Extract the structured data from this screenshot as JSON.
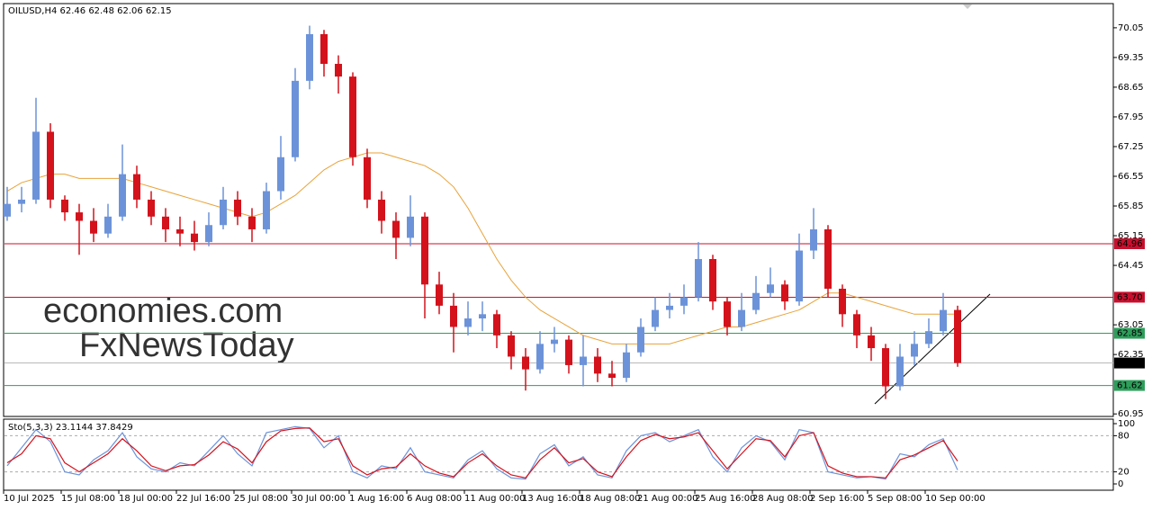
{
  "chart_data": {
    "type": "candlestick",
    "symbol_text": "OILUSD,H4",
    "quote_text": "62.46 62.48 62.06 62.15",
    "watermarks": [
      "economies.com",
      "FxNewsToday"
    ],
    "up_color": "#6c93d9",
    "down_color": "#d3121c",
    "categories": [
      "10 Jul 2025",
      null,
      null,
      null,
      "15 Jul 08:00",
      null,
      null,
      null,
      "18 Jul 00:00",
      null,
      null,
      null,
      "22 Jul 16:00",
      null,
      null,
      null,
      "25 Jul 08:00",
      null,
      null,
      null,
      "30 Jul 00:00",
      null,
      null,
      null,
      "1 Aug 16:00",
      null,
      null,
      null,
      "6 Aug 08:00",
      null,
      null,
      null,
      "11 Aug 00:00",
      null,
      null,
      null,
      "13 Aug 16:00",
      null,
      null,
      null,
      "18 Aug 08:00",
      null,
      null,
      null,
      "21 Aug 00:00",
      null,
      null,
      null,
      "25 Aug 16:00",
      null,
      null,
      null,
      "28 Aug 08:00",
      null,
      null,
      null,
      "2 Sep 16:00",
      null,
      null,
      null,
      "5 Sep 08:00",
      null,
      null,
      null,
      "10 Sep 00:00",
      null,
      null
    ],
    "open": [
      65.6,
      65.9,
      66.0,
      67.6,
      66.0,
      65.7,
      65.5,
      65.2,
      65.6,
      66.6,
      66.0,
      65.6,
      65.3,
      65.2,
      65.0,
      65.4,
      66.0,
      65.6,
      65.3,
      66.2,
      67.0,
      68.8,
      69.9,
      69.2,
      68.9,
      67.0,
      66.0,
      65.5,
      65.1,
      65.6,
      64.0,
      63.5,
      63.0,
      63.2,
      63.3,
      62.8,
      62.3,
      62.0,
      62.6,
      62.7,
      62.1,
      62.3,
      61.9,
      61.8,
      62.4,
      63.0,
      63.4,
      63.5,
      63.7,
      64.6,
      63.6,
      63.0,
      63.4,
      63.8,
      64.0,
      63.6,
      64.8,
      65.3,
      63.9,
      63.3,
      62.8,
      62.5,
      61.6,
      62.3,
      62.6,
      62.9,
      63.4
    ],
    "high": [
      66.3,
      66.3,
      68.4,
      67.8,
      66.1,
      65.9,
      65.8,
      65.9,
      67.3,
      66.8,
      66.2,
      65.8,
      65.6,
      65.5,
      65.7,
      66.3,
      66.2,
      65.8,
      66.4,
      67.5,
      69.1,
      70.1,
      70.0,
      69.4,
      69.0,
      67.2,
      66.2,
      65.7,
      66.1,
      65.7,
      64.3,
      63.8,
      63.6,
      63.6,
      63.4,
      62.9,
      62.5,
      62.9,
      63.0,
      62.8,
      62.8,
      62.5,
      62.2,
      62.6,
      63.2,
      63.7,
      63.8,
      64.0,
      65.0,
      64.7,
      63.7,
      63.8,
      64.2,
      64.4,
      64.1,
      65.2,
      65.8,
      65.4,
      64.0,
      63.4,
      63.0,
      62.6,
      62.6,
      62.9,
      63.2,
      63.8,
      63.5
    ],
    "low": [
      65.5,
      65.7,
      65.9,
      65.8,
      65.5,
      64.7,
      65.0,
      65.1,
      65.5,
      65.8,
      65.4,
      65.0,
      64.9,
      64.8,
      64.9,
      65.3,
      65.4,
      65.0,
      65.2,
      66.0,
      66.9,
      68.6,
      68.9,
      68.5,
      66.8,
      65.8,
      65.2,
      64.6,
      64.9,
      63.2,
      63.3,
      62.4,
      62.8,
      62.9,
      62.5,
      62.0,
      61.5,
      61.9,
      62.4,
      61.9,
      61.6,
      61.7,
      61.6,
      61.7,
      62.3,
      62.9,
      63.2,
      63.3,
      63.6,
      63.4,
      62.8,
      62.9,
      63.3,
      63.7,
      63.4,
      63.5,
      64.6,
      63.7,
      63.0,
      62.5,
      62.2,
      61.3,
      61.5,
      62.1,
      62.5,
      62.8,
      62.06
    ],
    "close": [
      65.9,
      66.0,
      67.6,
      66.0,
      65.7,
      65.5,
      65.2,
      65.6,
      66.6,
      66.0,
      65.6,
      65.3,
      65.2,
      65.0,
      65.4,
      66.0,
      65.6,
      65.3,
      66.2,
      67.0,
      68.8,
      69.9,
      69.2,
      68.9,
      67.0,
      66.0,
      65.5,
      65.1,
      65.6,
      64.0,
      63.5,
      63.0,
      63.2,
      63.3,
      62.8,
      62.3,
      62.0,
      62.6,
      62.7,
      62.1,
      62.3,
      61.9,
      61.8,
      62.4,
      63.0,
      63.4,
      63.5,
      63.7,
      64.6,
      63.6,
      63.0,
      63.4,
      63.8,
      64.0,
      63.6,
      64.8,
      65.3,
      63.9,
      63.3,
      62.8,
      62.5,
      61.6,
      62.3,
      62.6,
      62.9,
      63.4,
      62.15
    ],
    "moving_average": {
      "color": "#e8a33a",
      "values": [
        66.2,
        66.4,
        66.5,
        66.6,
        66.6,
        66.5,
        66.5,
        66.5,
        66.5,
        66.4,
        66.3,
        66.2,
        66.1,
        66.0,
        65.9,
        65.8,
        65.7,
        65.6,
        65.7,
        65.9,
        66.1,
        66.4,
        66.7,
        66.9,
        67.0,
        67.1,
        67.1,
        67.0,
        66.9,
        66.8,
        66.6,
        66.3,
        65.8,
        65.2,
        64.6,
        64.1,
        63.7,
        63.4,
        63.2,
        63.0,
        62.8,
        62.7,
        62.6,
        62.6,
        62.6,
        62.6,
        62.6,
        62.7,
        62.8,
        62.9,
        63.0,
        63.0,
        63.1,
        63.2,
        63.3,
        63.4,
        63.6,
        63.8,
        63.8,
        63.7,
        63.6,
        63.5,
        63.4,
        63.3,
        63.3,
        63.3,
        63.3
      ]
    },
    "ylim": [
      60.89,
      70.62
    ],
    "yticks": [
      70.05,
      69.35,
      68.65,
      67.95,
      67.25,
      66.55,
      65.85,
      65.15,
      64.45,
      63.05,
      62.35,
      60.95
    ],
    "levels": [
      {
        "price": 64.96,
        "color": "#c8102e"
      },
      {
        "price": {
          "value": 63.7,
          "label": "63.70"
        },
        "color": "#c8102e"
      },
      {
        "price": 62.85,
        "color": "#2e9e5b"
      },
      {
        "price": 61.62,
        "color": "#2e9e5b"
      }
    ],
    "current_price": {
      "price": 62.15,
      "color": "#000000",
      "line_color": "#b8b8b8"
    },
    "indicator": {
      "name": "Sto(5,3,3)",
      "ylim": [
        0,
        100
      ],
      "yticks": [
        100,
        80,
        20,
        0
      ],
      "levels": [
        80,
        20
      ],
      "series": [
        {
          "color": "#6c93d9",
          "values": [
            30,
            60,
            90,
            70,
            20,
            15,
            40,
            55,
            85,
            45,
            25,
            20,
            35,
            30,
            55,
            80,
            50,
            30,
            85,
            90,
            95,
            92,
            60,
            80,
            20,
            10,
            30,
            25,
            60,
            20,
            15,
            10,
            40,
            55,
            25,
            10,
            8,
            50,
            65,
            30,
            45,
            15,
            10,
            55,
            80,
            85,
            70,
            80,
            90,
            45,
            20,
            60,
            80,
            70,
            40,
            90,
            85,
            20,
            15,
            10,
            12,
            8,
            50,
            45,
            65,
            75,
            23.1144
          ]
        },
        {
          "color": "#d3121c",
          "values": [
            35,
            50,
            80,
            75,
            35,
            20,
            35,
            50,
            75,
            55,
            30,
            22,
            30,
            32,
            48,
            70,
            58,
            35,
            70,
            88,
            92,
            93,
            70,
            75,
            30,
            15,
            25,
            28,
            50,
            30,
            18,
            12,
            35,
            50,
            30,
            15,
            10,
            40,
            60,
            35,
            42,
            20,
            12,
            45,
            72,
            82,
            75,
            78,
            85,
            55,
            25,
            50,
            75,
            72,
            45,
            80,
            85,
            30,
            18,
            12,
            12,
            10,
            40,
            48,
            60,
            72,
            37.8429
          ]
        }
      ]
    }
  }
}
